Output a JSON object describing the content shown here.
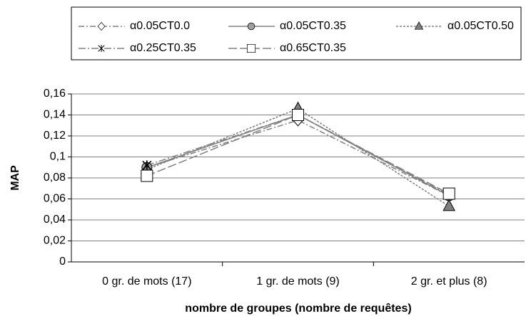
{
  "chart_data": {
    "type": "line",
    "categories": [
      "0 gr. de mots (17)",
      "1 gr. de mots (9)",
      "2 gr. et plus (8)"
    ],
    "series": [
      {
        "name": "α0.05CT0.0",
        "color": "#808080",
        "marker": "diamond",
        "dash": "8,3,2,3",
        "values": [
          0.09,
          0.135,
          0.063
        ]
      },
      {
        "name": "α0.05CT0.35",
        "color": "#808080",
        "marker": "circle",
        "dash": "none",
        "values": [
          0.09,
          0.14,
          0.063
        ]
      },
      {
        "name": "α0.05CT0.50",
        "color": "#808080",
        "marker": "triangle",
        "dash": "3,2",
        "values": [
          0.088,
          0.146,
          0.053
        ]
      },
      {
        "name": "α0.25CT0.35",
        "color": "#808080",
        "marker": "asterisk",
        "dash": "10,3,2,3",
        "values": [
          0.092,
          0.14,
          0.064
        ]
      },
      {
        "name": "α0.65CT0.35",
        "color": "#808080",
        "marker": "square",
        "dash": "12,4",
        "values": [
          0.082,
          0.14,
          0.065
        ]
      }
    ],
    "ylim": [
      0,
      0.16
    ],
    "yticks": [
      0,
      {
        "value": 0.02,
        "label": "0,02"
      },
      {
        "value": 0.04,
        "label": "0,04"
      },
      {
        "value": 0.06,
        "label": "0,06"
      },
      {
        "value": 0.08,
        "label": "0,08"
      },
      {
        "value": 0.1,
        "label": "0,1"
      },
      {
        "value": 0.12,
        "label": "0,12"
      },
      {
        "value": 0.14,
        "label": "0,14"
      },
      {
        "value": 0.16,
        "label": "0,16"
      }
    ],
    "ylabel": "MAP",
    "xlabel": "nombre de groupes (nombre de requêtes)",
    "grid": true,
    "legend": "top"
  }
}
